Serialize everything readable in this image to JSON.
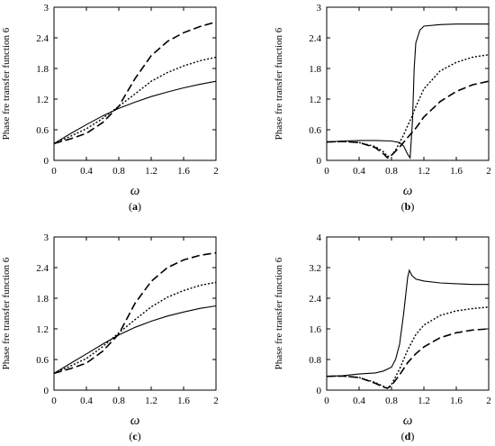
{
  "chart_data": [
    {
      "panel": "a",
      "type": "line",
      "caption_open": "(",
      "caption_letter": "a",
      "caption_close": ")",
      "title": "",
      "xlabel": "ω",
      "ylabel": "Phase fre transfer function 6",
      "xlim": [
        0,
        2
      ],
      "ylim": [
        0,
        3
      ],
      "xticks": [
        "0",
        "0.4",
        "0.8",
        "1.2",
        "1.6",
        "2"
      ],
      "yticks": [
        "0",
        "0.6",
        "1.2",
        "1.8",
        "2.4",
        "3"
      ],
      "series": [
        {
          "style": "solid",
          "x": [
            0,
            0.2,
            0.4,
            0.6,
            0.8,
            1.0,
            1.2,
            1.4,
            1.6,
            1.8,
            2.0
          ],
          "y": [
            0.33,
            0.52,
            0.7,
            0.87,
            1.02,
            1.14,
            1.25,
            1.34,
            1.42,
            1.49,
            1.55
          ]
        },
        {
          "style": "dotted",
          "x": [
            0,
            0.2,
            0.4,
            0.6,
            0.8,
            1.0,
            1.2,
            1.4,
            1.6,
            1.8,
            2.0
          ],
          "y": [
            0.33,
            0.47,
            0.62,
            0.82,
            1.06,
            1.3,
            1.55,
            1.72,
            1.85,
            1.95,
            2.02
          ]
        },
        {
          "style": "dashed",
          "x": [
            0,
            0.2,
            0.4,
            0.6,
            0.8,
            0.9,
            1.0,
            1.2,
            1.4,
            1.6,
            1.8,
            2.0
          ],
          "y": [
            0.33,
            0.42,
            0.53,
            0.74,
            1.06,
            1.33,
            1.6,
            2.05,
            2.33,
            2.5,
            2.62,
            2.71
          ]
        }
      ]
    },
    {
      "panel": "b",
      "type": "line",
      "caption_open": "(",
      "caption_letter": "b",
      "caption_close": ")",
      "title": "",
      "xlabel": "ω",
      "ylabel": "Phase fre transfer function 6",
      "xlim": [
        0,
        2
      ],
      "ylim": [
        0,
        3
      ],
      "xticks": [
        "0",
        "0.4",
        "0.8",
        "1.2",
        "1.6",
        "2"
      ],
      "yticks": [
        "0",
        "0.6",
        "1.2",
        "1.8",
        "2.4",
        "3"
      ],
      "series": [
        {
          "style": "solid",
          "x": [
            0,
            0.2,
            0.4,
            0.6,
            0.8,
            0.9,
            0.95,
            1.0,
            1.03,
            1.06,
            1.08,
            1.1,
            1.15,
            1.2,
            1.4,
            1.6,
            1.8,
            2.0
          ],
          "y": [
            0.36,
            0.38,
            0.39,
            0.39,
            0.38,
            0.35,
            0.28,
            0.12,
            0.05,
            0.8,
            1.8,
            2.3,
            2.55,
            2.63,
            2.66,
            2.67,
            2.67,
            2.67
          ]
        },
        {
          "style": "dotted",
          "x": [
            0,
            0.2,
            0.4,
            0.6,
            0.7,
            0.75,
            0.8,
            0.85,
            0.9,
            0.95,
            1.0,
            1.05,
            1.1,
            1.2,
            1.4,
            1.6,
            1.8,
            2.0
          ],
          "y": [
            0.36,
            0.37,
            0.35,
            0.27,
            0.17,
            0.08,
            0.1,
            0.2,
            0.35,
            0.5,
            0.68,
            0.85,
            1.05,
            1.4,
            1.75,
            1.92,
            2.02,
            2.07
          ]
        },
        {
          "style": "dashed",
          "x": [
            0,
            0.2,
            0.4,
            0.6,
            0.7,
            0.75,
            0.8,
            0.9,
            1.0,
            1.1,
            1.2,
            1.4,
            1.6,
            1.8,
            2.0
          ],
          "y": [
            0.36,
            0.37,
            0.35,
            0.25,
            0.13,
            0.05,
            0.1,
            0.26,
            0.45,
            0.63,
            0.85,
            1.15,
            1.35,
            1.48,
            1.55
          ]
        }
      ]
    },
    {
      "panel": "c",
      "type": "line",
      "caption_open": "(",
      "caption_letter": "c",
      "caption_close": ")",
      "title": "",
      "xlabel": "ω",
      "ylabel": "Phase fre transfer function 6",
      "xlim": [
        0,
        2
      ],
      "ylim": [
        0,
        3
      ],
      "xticks": [
        "0",
        "0.4",
        "0.8",
        "1.2",
        "1.6",
        "2"
      ],
      "yticks": [
        "0",
        "0.6",
        "1.2",
        "1.8",
        "2.4",
        "3"
      ],
      "series": [
        {
          "style": "solid",
          "x": [
            0,
            0.2,
            0.4,
            0.6,
            0.8,
            1.0,
            1.2,
            1.4,
            1.6,
            1.8,
            2.0
          ],
          "y": [
            0.33,
            0.52,
            0.71,
            0.9,
            1.08,
            1.23,
            1.35,
            1.45,
            1.53,
            1.6,
            1.65
          ]
        },
        {
          "style": "dotted",
          "x": [
            0,
            0.2,
            0.4,
            0.6,
            0.8,
            1.0,
            1.2,
            1.4,
            1.6,
            1.8,
            2.0
          ],
          "y": [
            0.33,
            0.47,
            0.62,
            0.85,
            1.12,
            1.38,
            1.63,
            1.82,
            1.95,
            2.05,
            2.11
          ]
        },
        {
          "style": "dashed",
          "x": [
            0,
            0.2,
            0.4,
            0.6,
            0.8,
            0.9,
            1.0,
            1.2,
            1.4,
            1.6,
            1.8,
            2.0
          ],
          "y": [
            0.33,
            0.42,
            0.53,
            0.76,
            1.1,
            1.4,
            1.7,
            2.13,
            2.4,
            2.55,
            2.64,
            2.69
          ]
        }
      ]
    },
    {
      "panel": "d",
      "type": "line",
      "caption_open": "(",
      "caption_letter": "d",
      "caption_close": ")",
      "title": "",
      "xlabel": "ω",
      "ylabel": "Phase fre transfer function 6",
      "xlim": [
        0,
        2
      ],
      "ylim": [
        0,
        4
      ],
      "xticks": [
        "0",
        "0.4",
        "0.8",
        "1.2",
        "1.6",
        "2"
      ],
      "yticks": [
        "0",
        "0.8",
        "1.6",
        "2.4",
        "3.2",
        "4"
      ],
      "series": [
        {
          "style": "solid",
          "x": [
            0,
            0.2,
            0.4,
            0.6,
            0.7,
            0.8,
            0.85,
            0.9,
            0.95,
            1.0,
            1.02,
            1.05,
            1.1,
            1.2,
            1.4,
            1.6,
            1.8,
            2.0
          ],
          "y": [
            0.36,
            0.38,
            0.42,
            0.45,
            0.5,
            0.6,
            0.8,
            1.2,
            2.0,
            2.95,
            3.13,
            3.0,
            2.9,
            2.85,
            2.8,
            2.78,
            2.76,
            2.76
          ]
        },
        {
          "style": "dotted",
          "x": [
            0,
            0.2,
            0.4,
            0.6,
            0.7,
            0.75,
            0.8,
            0.9,
            1.0,
            1.1,
            1.2,
            1.4,
            1.6,
            1.8,
            2.0
          ],
          "y": [
            0.36,
            0.37,
            0.33,
            0.2,
            0.1,
            0.05,
            0.15,
            0.55,
            1.05,
            1.45,
            1.7,
            1.95,
            2.07,
            2.13,
            2.17
          ]
        },
        {
          "style": "dashed",
          "x": [
            0,
            0.2,
            0.4,
            0.6,
            0.7,
            0.75,
            0.8,
            0.9,
            1.0,
            1.1,
            1.2,
            1.4,
            1.6,
            1.8,
            2.0
          ],
          "y": [
            0.36,
            0.37,
            0.33,
            0.18,
            0.08,
            0.05,
            0.12,
            0.4,
            0.72,
            0.95,
            1.13,
            1.37,
            1.5,
            1.57,
            1.6
          ]
        }
      ]
    }
  ]
}
